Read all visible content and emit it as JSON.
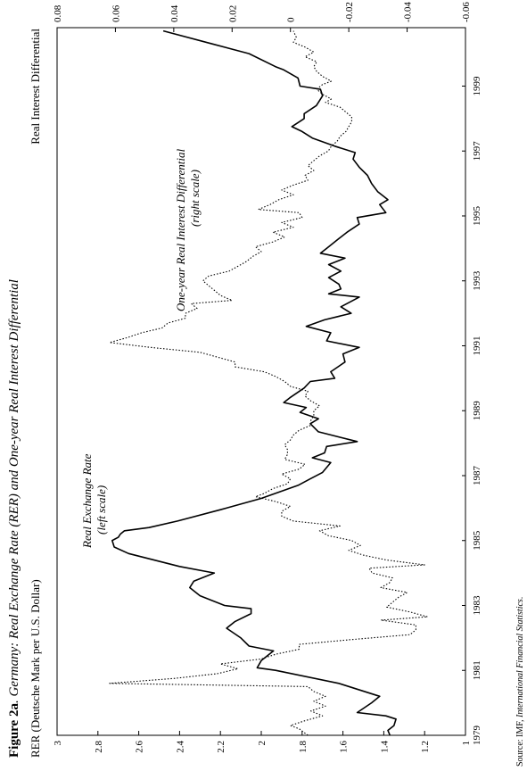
{
  "figure": {
    "label": "Figure 2a",
    "title_prefix": ". Germany: ",
    "title_main": "Real Exchange Rate (RER) and One-year Real Interest Differential",
    "left_axis_label": "RER (Deutsche Mark per U.S. Dollar)",
    "right_axis_label": "Real Interest Differential",
    "source_prefix": "Source: IMF, ",
    "source_main": "International Financial Statistics",
    "source_suffix": ".",
    "annotation_rer_line1": "Real Exchange Rate",
    "annotation_rer_line2": "(left scale)",
    "annotation_rid_line1": "One-year Real Interest Differential",
    "annotation_rid_line2": "(right scale)"
  },
  "chart_data": {
    "type": "line",
    "x_ticks": [
      "1979",
      "1981",
      "1983",
      "1985",
      "1987",
      "1989",
      "1991",
      "1993",
      "1995",
      "1997",
      "1999"
    ],
    "x_range": [
      1979.0,
      2000.8
    ],
    "y_left": {
      "label": "RER (Deutsche Mark per U.S. Dollar)",
      "range": [
        1,
        3
      ],
      "ticks": [
        "1",
        "1.2",
        "1.4",
        "1.6",
        "1.8",
        "2",
        "2.2",
        "2.4",
        "2.6",
        "2.8",
        "3"
      ]
    },
    "y_right": {
      "label": "Real Interest Differential",
      "range": [
        -0.06,
        0.08
      ],
      "ticks": [
        "-0.06",
        "-0.04",
        "-0.02",
        "0",
        "0.02",
        "0.04",
        "0.06",
        "0.08"
      ]
    },
    "series": [
      {
        "name": "Real Exchange Rate",
        "axis": "left",
        "style": "solid",
        "points": [
          [
            1979.0,
            1.37
          ],
          [
            1979.15,
            1.38
          ],
          [
            1979.3,
            1.35
          ],
          [
            1979.5,
            1.34
          ],
          [
            1979.6,
            1.39
          ],
          [
            1979.7,
            1.53
          ],
          [
            1980.0,
            1.46
          ],
          [
            1980.2,
            1.42
          ],
          [
            1980.6,
            1.62
          ],
          [
            1981.0,
            1.93
          ],
          [
            1981.08,
            2.02
          ],
          [
            1981.3,
            2.0
          ],
          [
            1981.6,
            1.94
          ],
          [
            1981.75,
            2.06
          ],
          [
            1982.0,
            2.1
          ],
          [
            1982.3,
            2.17
          ],
          [
            1982.5,
            2.13
          ],
          [
            1982.75,
            2.05
          ],
          [
            1982.9,
            2.05
          ],
          [
            1983.0,
            2.18
          ],
          [
            1983.3,
            2.3
          ],
          [
            1983.55,
            2.35
          ],
          [
            1983.75,
            2.33
          ],
          [
            1984.0,
            2.23
          ],
          [
            1984.2,
            2.4
          ],
          [
            1984.6,
            2.65
          ],
          [
            1984.8,
            2.72
          ],
          [
            1985.0,
            2.73
          ],
          [
            1985.1,
            2.7
          ],
          [
            1985.2,
            2.69
          ],
          [
            1985.3,
            2.67
          ],
          [
            1985.4,
            2.55
          ],
          [
            1985.6,
            2.41
          ],
          [
            1985.95,
            2.2
          ],
          [
            1986.3,
            2.0
          ],
          [
            1986.7,
            1.82
          ],
          [
            1986.9,
            1.76
          ],
          [
            1987.1,
            1.7
          ],
          [
            1987.4,
            1.66
          ],
          [
            1987.55,
            1.75
          ],
          [
            1987.7,
            1.69
          ],
          [
            1987.9,
            1.68
          ],
          [
            1988.05,
            1.53
          ],
          [
            1988.35,
            1.72
          ],
          [
            1988.6,
            1.76
          ],
          [
            1988.75,
            1.72
          ],
          [
            1988.95,
            1.81
          ],
          [
            1989.1,
            1.78
          ],
          [
            1989.25,
            1.89
          ],
          [
            1989.4,
            1.86
          ],
          [
            1989.7,
            1.79
          ],
          [
            1989.9,
            1.76
          ],
          [
            1990.0,
            1.64
          ],
          [
            1990.2,
            1.66
          ],
          [
            1990.5,
            1.59
          ],
          [
            1990.75,
            1.6
          ],
          [
            1990.95,
            1.52
          ],
          [
            1991.15,
            1.68
          ],
          [
            1991.4,
            1.66
          ],
          [
            1991.6,
            1.78
          ],
          [
            1991.8,
            1.69
          ],
          [
            1992.0,
            1.56
          ],
          [
            1992.2,
            1.61
          ],
          [
            1992.5,
            1.52
          ],
          [
            1992.6,
            1.67
          ],
          [
            1992.75,
            1.61
          ],
          [
            1992.9,
            1.62
          ],
          [
            1993.1,
            1.67
          ],
          [
            1993.3,
            1.61
          ],
          [
            1993.5,
            1.67
          ],
          [
            1993.7,
            1.59
          ],
          [
            1993.85,
            1.71
          ],
          [
            1994.0,
            1.68
          ],
          [
            1994.3,
            1.62
          ],
          [
            1994.5,
            1.58
          ],
          [
            1994.75,
            1.52
          ],
          [
            1994.95,
            1.53
          ],
          [
            1995.1,
            1.39
          ],
          [
            1995.35,
            1.42
          ],
          [
            1995.5,
            1.38
          ],
          [
            1995.75,
            1.43
          ],
          [
            1996.0,
            1.46
          ],
          [
            1996.25,
            1.48
          ],
          [
            1996.5,
            1.52
          ],
          [
            1996.75,
            1.55
          ],
          [
            1996.95,
            1.54
          ],
          [
            1997.15,
            1.64
          ],
          [
            1997.4,
            1.75
          ],
          [
            1997.6,
            1.8
          ],
          [
            1997.75,
            1.85
          ],
          [
            1998.0,
            1.79
          ],
          [
            1998.15,
            1.79
          ],
          [
            1998.4,
            1.73
          ],
          [
            1998.7,
            1.7
          ],
          [
            1998.9,
            1.71
          ],
          [
            1999.0,
            1.81
          ],
          [
            1999.25,
            1.82
          ],
          [
            1999.5,
            1.89
          ],
          [
            1999.6,
            1.93
          ],
          [
            2000.0,
            2.06
          ],
          [
            2000.3,
            2.24
          ],
          [
            2000.7,
            2.48
          ]
        ]
      },
      {
        "name": "One-year Real Interest Differential",
        "axis": "right",
        "style": "dotted",
        "points": [
          [
            1979.0,
            -0.006
          ],
          [
            1979.2,
            -0.003
          ],
          [
            1979.3,
            0.0
          ],
          [
            1979.45,
            -0.005
          ],
          [
            1979.6,
            -0.011
          ],
          [
            1979.75,
            -0.007
          ],
          [
            1979.9,
            -0.012
          ],
          [
            1980.05,
            -0.008
          ],
          [
            1980.2,
            -0.012
          ],
          [
            1980.35,
            -0.008
          ],
          [
            1980.5,
            -0.006
          ],
          [
            1980.6,
            0.062
          ],
          [
            1980.75,
            0.04
          ],
          [
            1980.9,
            0.025
          ],
          [
            1981.05,
            0.018
          ],
          [
            1981.2,
            0.024
          ],
          [
            1981.35,
            0.01
          ],
          [
            1981.5,
            0.005
          ],
          [
            1981.65,
            -0.003
          ],
          [
            1981.8,
            -0.003
          ],
          [
            1981.95,
            -0.021
          ],
          [
            1982.1,
            -0.041
          ],
          [
            1982.25,
            -0.043
          ],
          [
            1982.4,
            -0.043
          ],
          [
            1982.55,
            -0.031
          ],
          [
            1982.65,
            -0.047
          ],
          [
            1982.8,
            -0.041
          ],
          [
            1982.95,
            -0.033
          ],
          [
            1983.1,
            -0.035
          ],
          [
            1983.25,
            -0.037
          ],
          [
            1983.4,
            -0.04
          ],
          [
            1983.55,
            -0.031
          ],
          [
            1983.7,
            -0.034
          ],
          [
            1983.85,
            -0.035
          ],
          [
            1984.0,
            -0.028
          ],
          [
            1984.15,
            -0.027
          ],
          [
            1984.25,
            -0.046
          ],
          [
            1984.4,
            -0.033
          ],
          [
            1984.55,
            -0.025
          ],
          [
            1984.7,
            -0.02
          ],
          [
            1984.85,
            -0.024
          ],
          [
            1985.0,
            -0.021
          ],
          [
            1985.15,
            -0.013
          ],
          [
            1985.3,
            -0.01
          ],
          [
            1985.45,
            -0.017
          ],
          [
            1985.6,
            -0.001
          ],
          [
            1985.75,
            0.003
          ],
          [
            1985.9,
            0.003
          ],
          [
            1986.05,
            0.0
          ],
          [
            1986.2,
            0.005
          ],
          [
            1986.35,
            0.012
          ],
          [
            1986.45,
            0.009
          ],
          [
            1986.6,
            0.006
          ],
          [
            1986.75,
            0.001
          ],
          [
            1986.9,
            0.0
          ],
          [
            1987.05,
            0.003
          ],
          [
            1987.2,
            -0.003
          ],
          [
            1987.35,
            -0.005
          ],
          [
            1987.5,
            0.002
          ],
          [
            1987.65,
            0.001
          ],
          [
            1987.8,
            0.001
          ],
          [
            1987.95,
            0.002
          ],
          [
            1988.1,
            0.0
          ],
          [
            1988.25,
            -0.001
          ],
          [
            1988.4,
            -0.003
          ],
          [
            1988.55,
            -0.007
          ],
          [
            1988.7,
            -0.007
          ],
          [
            1988.85,
            -0.008
          ],
          [
            1989.0,
            -0.008
          ],
          [
            1989.15,
            -0.01
          ],
          [
            1989.3,
            -0.007
          ],
          [
            1989.45,
            -0.005
          ],
          [
            1989.6,
            -0.006
          ],
          [
            1989.75,
            0.0
          ],
          [
            1989.9,
            0.002
          ],
          [
            1990.05,
            0.005
          ],
          [
            1990.2,
            0.009
          ],
          [
            1990.35,
            0.019
          ],
          [
            1990.5,
            0.019
          ],
          [
            1990.65,
            0.025
          ],
          [
            1990.8,
            0.031
          ],
          [
            1990.95,
            0.048
          ],
          [
            1991.1,
            0.062
          ],
          [
            1991.25,
            0.056
          ],
          [
            1991.4,
            0.051
          ],
          [
            1991.55,
            0.044
          ],
          [
            1991.7,
            0.042
          ],
          [
            1991.85,
            0.036
          ],
          [
            1992.0,
            0.036
          ],
          [
            1992.15,
            0.032
          ],
          [
            1992.3,
            0.034
          ],
          [
            1992.4,
            0.02
          ],
          [
            1992.55,
            0.024
          ],
          [
            1992.7,
            0.026
          ],
          [
            1992.85,
            0.028
          ],
          [
            1993.0,
            0.03
          ],
          [
            1993.15,
            0.028
          ],
          [
            1993.3,
            0.021
          ],
          [
            1993.45,
            0.018
          ],
          [
            1993.6,
            0.015
          ],
          [
            1993.75,
            0.013
          ],
          [
            1993.9,
            0.01
          ],
          [
            1994.05,
            0.012
          ],
          [
            1994.2,
            0.006
          ],
          [
            1994.35,
            0.002
          ],
          [
            1994.5,
            0.006
          ],
          [
            1994.65,
            -0.001
          ],
          [
            1994.8,
            0.003
          ],
          [
            1994.95,
            -0.004
          ],
          [
            1995.1,
            -0.003
          ],
          [
            1995.2,
            0.011
          ],
          [
            1995.35,
            0.007
          ],
          [
            1995.5,
            0.004
          ],
          [
            1995.65,
            -0.001
          ],
          [
            1995.8,
            0.003
          ],
          [
            1995.95,
            -0.001
          ],
          [
            1996.1,
            -0.006
          ],
          [
            1996.25,
            -0.005
          ],
          [
            1996.4,
            -0.008
          ],
          [
            1996.55,
            -0.006
          ],
          [
            1996.7,
            -0.008
          ],
          [
            1996.85,
            -0.01
          ],
          [
            1997.0,
            -0.013
          ],
          [
            1997.15,
            -0.014
          ],
          [
            1997.3,
            -0.016
          ],
          [
            1997.45,
            -0.017
          ],
          [
            1997.6,
            -0.019
          ],
          [
            1997.75,
            -0.02
          ],
          [
            1997.9,
            -0.021
          ],
          [
            1998.05,
            -0.021
          ],
          [
            1998.2,
            -0.019
          ],
          [
            1998.35,
            -0.017
          ],
          [
            1998.5,
            -0.012
          ],
          [
            1998.6,
            -0.014
          ],
          [
            1998.75,
            -0.011
          ],
          [
            1998.9,
            -0.009
          ],
          [
            1999.05,
            -0.011
          ],
          [
            1999.15,
            -0.014
          ],
          [
            1999.3,
            -0.011
          ],
          [
            1999.45,
            -0.009
          ],
          [
            1999.6,
            -0.008
          ],
          [
            1999.75,
            -0.009
          ],
          [
            1999.9,
            -0.005
          ],
          [
            2000.05,
            -0.008
          ],
          [
            2000.2,
            -0.005
          ],
          [
            2000.35,
            -0.001
          ],
          [
            2000.5,
            -0.002
          ],
          [
            2000.7,
            -0.001
          ]
        ]
      }
    ]
  }
}
